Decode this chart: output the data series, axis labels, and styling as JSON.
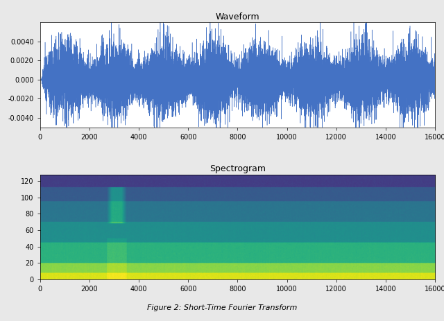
{
  "title_waveform": "Waveform",
  "title_spectrogram": "Spectrogram",
  "waveform_color": "#4472c4",
  "waveform_xlim": [
    0,
    16000
  ],
  "waveform_ylim": [
    -0.005,
    0.006
  ],
  "waveform_yticks": [
    -0.004,
    -0.002,
    0.0,
    0.002,
    0.004
  ],
  "waveform_xticks": [
    0,
    2000,
    4000,
    6000,
    8000,
    10000,
    12000,
    14000,
    16000
  ],
  "spectrogram_xlim": [
    0,
    16000
  ],
  "spectrogram_ylim": [
    0,
    128
  ],
  "spectrogram_yticks": [
    0,
    20,
    40,
    60,
    80,
    100,
    120
  ],
  "spectrogram_xticks": [
    0,
    2000,
    4000,
    6000,
    8000,
    10000,
    12000,
    14000,
    16000
  ],
  "n_samples": 16000,
  "n_fft_bins": 128,
  "seed": 42,
  "figure_bg": "#e8e8e8",
  "axes_bg": "#ffffff",
  "caption": "Figure 2: Short-Time Fourier Transform"
}
